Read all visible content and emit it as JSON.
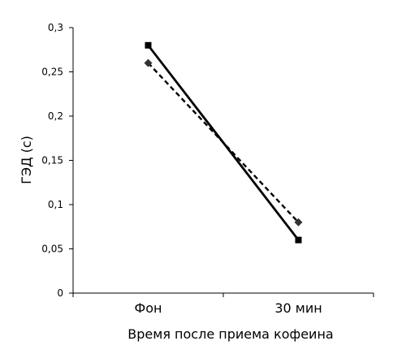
{
  "chart_data": {
    "type": "line",
    "categories": [
      "Фон",
      "30 мин"
    ],
    "xlabel": "Время после приема кофеина",
    "ylabel": "ГЭД (с)",
    "ylim": [
      0,
      0.3
    ],
    "yticks": [
      "0",
      "0,05",
      "0,1",
      "0,15",
      "0,2",
      "0,25",
      "0,3"
    ],
    "grid": false,
    "legend": "none",
    "series": [
      {
        "values": [
          0.28,
          0.06
        ],
        "line_style": "solid",
        "marker": "square",
        "color": "#000000"
      },
      {
        "values": [
          0.26,
          0.08
        ],
        "line_style": "dashed",
        "marker": "diamond",
        "color": "#000000"
      }
    ]
  }
}
